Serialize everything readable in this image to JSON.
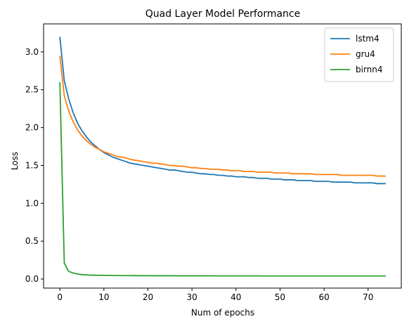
{
  "chart_data": {
    "type": "line",
    "title": "Quad Layer Model Performance",
    "xlabel": "Num of epochs",
    "ylabel": "Loss",
    "xlim": [
      -3.7,
      77.7
    ],
    "ylim": [
      -0.12,
      3.37
    ],
    "xticks": [
      0,
      10,
      20,
      30,
      40,
      50,
      60,
      70
    ],
    "yticks": [
      0.0,
      0.5,
      1.0,
      1.5,
      2.0,
      2.5,
      3.0
    ],
    "xtick_labels": [
      "0",
      "10",
      "20",
      "30",
      "40",
      "50",
      "60",
      "70"
    ],
    "ytick_labels": [
      "0.0",
      "0.5",
      "1.0",
      "1.5",
      "2.0",
      "2.5",
      "3.0"
    ],
    "legend_position": "top-right",
    "grid": false,
    "series": [
      {
        "name": "lstm4",
        "color": "#1f77b4",
        "x": [
          0,
          1,
          2,
          3,
          4,
          5,
          6,
          7,
          8,
          9,
          10,
          11,
          12,
          13,
          14,
          15,
          16,
          17,
          18,
          19,
          20,
          21,
          22,
          23,
          24,
          25,
          26,
          27,
          28,
          29,
          30,
          31,
          32,
          33,
          34,
          35,
          36,
          37,
          38,
          39,
          40,
          41,
          42,
          43,
          44,
          45,
          46,
          47,
          48,
          49,
          50,
          51,
          52,
          53,
          54,
          55,
          56,
          57,
          58,
          59,
          60,
          61,
          62,
          63,
          64,
          65,
          66,
          67,
          68,
          69,
          70,
          71,
          72,
          73,
          74
        ],
        "y": [
          3.2,
          2.62,
          2.38,
          2.2,
          2.06,
          1.96,
          1.88,
          1.81,
          1.76,
          1.71,
          1.67,
          1.64,
          1.61,
          1.59,
          1.57,
          1.55,
          1.53,
          1.52,
          1.51,
          1.5,
          1.49,
          1.48,
          1.47,
          1.46,
          1.45,
          1.44,
          1.44,
          1.43,
          1.42,
          1.41,
          1.41,
          1.4,
          1.39,
          1.39,
          1.38,
          1.38,
          1.37,
          1.37,
          1.36,
          1.36,
          1.35,
          1.35,
          1.35,
          1.34,
          1.34,
          1.33,
          1.33,
          1.33,
          1.32,
          1.32,
          1.32,
          1.31,
          1.31,
          1.31,
          1.3,
          1.3,
          1.3,
          1.3,
          1.29,
          1.29,
          1.29,
          1.29,
          1.28,
          1.28,
          1.28,
          1.28,
          1.28,
          1.27,
          1.27,
          1.27,
          1.27,
          1.27,
          1.26,
          1.26,
          1.26
        ]
      },
      {
        "name": "gru4",
        "color": "#ff7f0e",
        "x": [
          0,
          1,
          2,
          3,
          4,
          5,
          6,
          7,
          8,
          9,
          10,
          11,
          12,
          13,
          14,
          15,
          16,
          17,
          18,
          19,
          20,
          21,
          22,
          23,
          24,
          25,
          26,
          27,
          28,
          29,
          30,
          31,
          32,
          33,
          34,
          35,
          36,
          37,
          38,
          39,
          40,
          41,
          42,
          43,
          44,
          45,
          46,
          47,
          48,
          49,
          50,
          51,
          52,
          53,
          54,
          55,
          56,
          57,
          58,
          59,
          60,
          61,
          62,
          63,
          64,
          65,
          66,
          67,
          68,
          69,
          70,
          71,
          72,
          73,
          74
        ],
        "y": [
          2.95,
          2.42,
          2.22,
          2.08,
          1.97,
          1.89,
          1.83,
          1.78,
          1.74,
          1.71,
          1.68,
          1.66,
          1.64,
          1.62,
          1.61,
          1.6,
          1.58,
          1.57,
          1.56,
          1.55,
          1.54,
          1.53,
          1.53,
          1.52,
          1.51,
          1.5,
          1.5,
          1.49,
          1.49,
          1.48,
          1.47,
          1.47,
          1.46,
          1.46,
          1.45,
          1.45,
          1.45,
          1.44,
          1.44,
          1.43,
          1.43,
          1.43,
          1.42,
          1.42,
          1.42,
          1.41,
          1.41,
          1.41,
          1.41,
          1.4,
          1.4,
          1.4,
          1.4,
          1.39,
          1.39,
          1.39,
          1.39,
          1.39,
          1.38,
          1.38,
          1.38,
          1.38,
          1.38,
          1.38,
          1.37,
          1.37,
          1.37,
          1.37,
          1.37,
          1.37,
          1.37,
          1.37,
          1.36,
          1.36,
          1.36
        ]
      },
      {
        "name": "birnn4",
        "color": "#2ca02c",
        "x": [
          0,
          1,
          2,
          3,
          4,
          5,
          6,
          7,
          8,
          9,
          10,
          11,
          12,
          13,
          14,
          15,
          16,
          17,
          18,
          19,
          20,
          21,
          22,
          23,
          24,
          25,
          26,
          27,
          28,
          29,
          30,
          31,
          32,
          33,
          34,
          35,
          36,
          37,
          38,
          39,
          40,
          41,
          42,
          43,
          44,
          45,
          46,
          47,
          48,
          49,
          50,
          51,
          52,
          53,
          54,
          55,
          56,
          57,
          58,
          59,
          60,
          61,
          62,
          63,
          64,
          65,
          66,
          67,
          68,
          69,
          70,
          71,
          72,
          73,
          74
        ],
        "y": [
          2.6,
          0.21,
          0.1,
          0.08,
          0.066,
          0.058,
          0.054,
          0.051,
          0.05,
          0.049,
          0.048,
          0.047,
          0.046,
          0.046,
          0.045,
          0.045,
          0.045,
          0.044,
          0.044,
          0.044,
          0.044,
          0.043,
          0.043,
          0.043,
          0.043,
          0.043,
          0.043,
          0.042,
          0.042,
          0.042,
          0.042,
          0.042,
          0.042,
          0.042,
          0.042,
          0.041,
          0.041,
          0.041,
          0.041,
          0.041,
          0.041,
          0.041,
          0.041,
          0.041,
          0.041,
          0.041,
          0.04,
          0.04,
          0.04,
          0.04,
          0.04,
          0.04,
          0.04,
          0.04,
          0.04,
          0.04,
          0.04,
          0.04,
          0.04,
          0.04,
          0.04,
          0.04,
          0.04,
          0.04,
          0.04,
          0.04,
          0.04,
          0.04,
          0.04,
          0.04,
          0.04,
          0.04,
          0.04,
          0.04,
          0.04
        ]
      }
    ]
  }
}
